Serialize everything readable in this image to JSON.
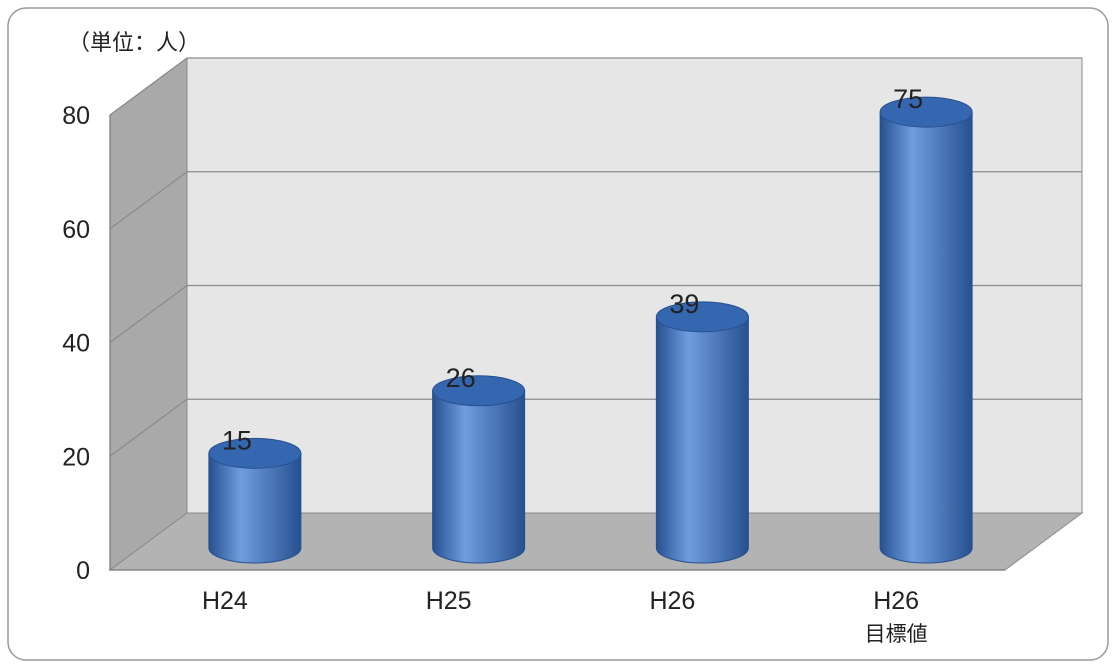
{
  "chart_data": {
    "type": "bar",
    "unit_label": "（単位：人）",
    "categories": [
      "H24",
      "H25",
      "H26",
      "H26\n目標値"
    ],
    "values": [
      15,
      26,
      39,
      75
    ],
    "data_labels": [
      "15",
      "26",
      "39",
      "75"
    ],
    "y_ticks": [
      "0",
      "20",
      "40",
      "60",
      "80"
    ],
    "ylim": [
      0,
      80
    ],
    "grid": true,
    "style": "3d-cylinder",
    "colors": {
      "bar": "#4a7cc4",
      "bar_dark": "#27508f",
      "bar_light": "#6f9de0",
      "bar_top": "#3567b0",
      "back_wall": "#e6e6e6",
      "side_wall": "#a9a9a9",
      "floor": "#b3b3b3",
      "gridline": "#8c8c8c",
      "text": "#222222"
    }
  }
}
